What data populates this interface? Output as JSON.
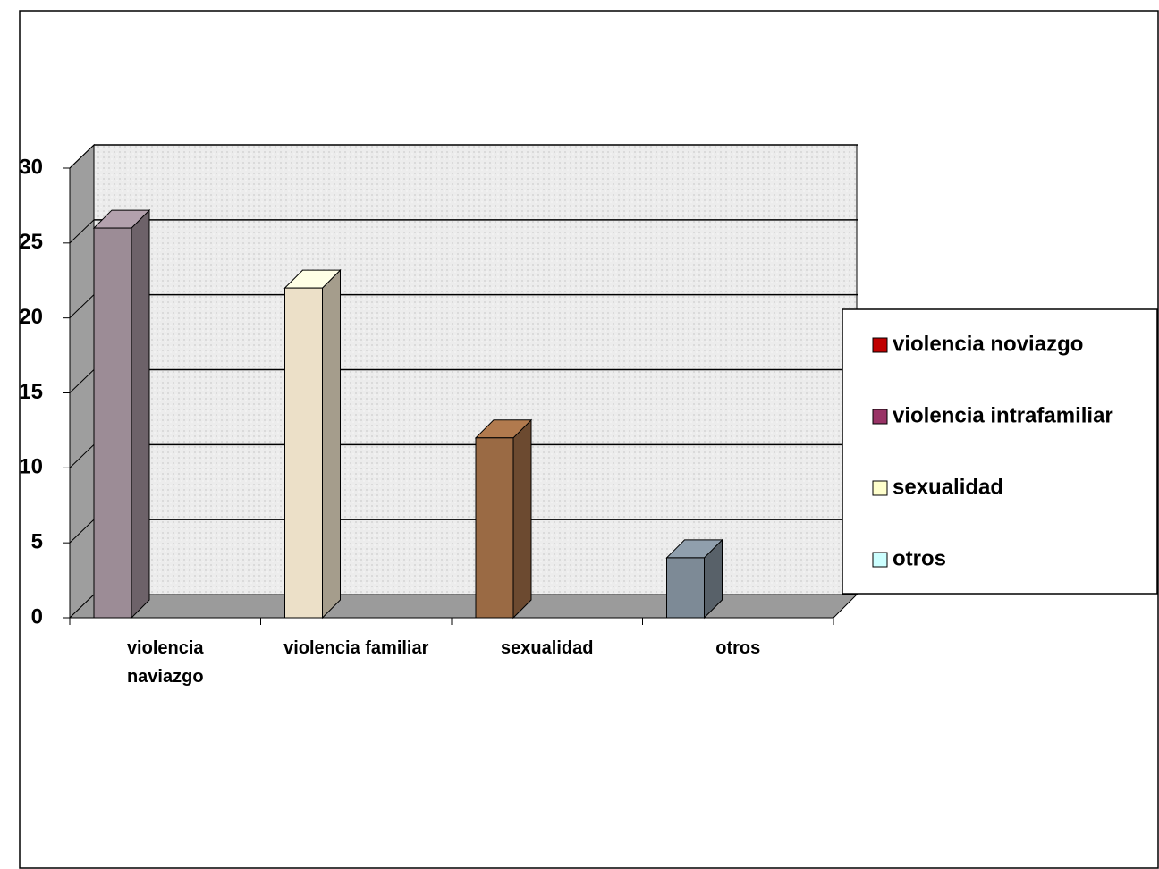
{
  "chart_data": {
    "type": "bar3d",
    "categories": [
      "violencia naviazgo",
      "violencia familiar",
      "sexualidad",
      "otros"
    ],
    "series": [
      {
        "name": "violencia noviazgo",
        "color": "#c00000",
        "bar_fill": "#9c8c96",
        "values": [
          26,
          null,
          null,
          null
        ]
      },
      {
        "name": "violencia intrafamiliar",
        "color": "#993366",
        "bar_fill": "#ece0c8",
        "values": [
          null,
          22,
          null,
          null
        ]
      },
      {
        "name": "sexualidad",
        "color": "#ffffcc",
        "bar_fill": "#9a6a44",
        "values": [
          null,
          null,
          12,
          null
        ]
      },
      {
        "name": "otros",
        "color": "#ccffff",
        "bar_fill": "#7d8a96",
        "values": [
          null,
          null,
          null,
          4
        ]
      }
    ],
    "ylim": [
      0,
      30
    ],
    "yticks": [
      0,
      5,
      10,
      15,
      20,
      25,
      30
    ],
    "grid": true,
    "legend": "right"
  }
}
